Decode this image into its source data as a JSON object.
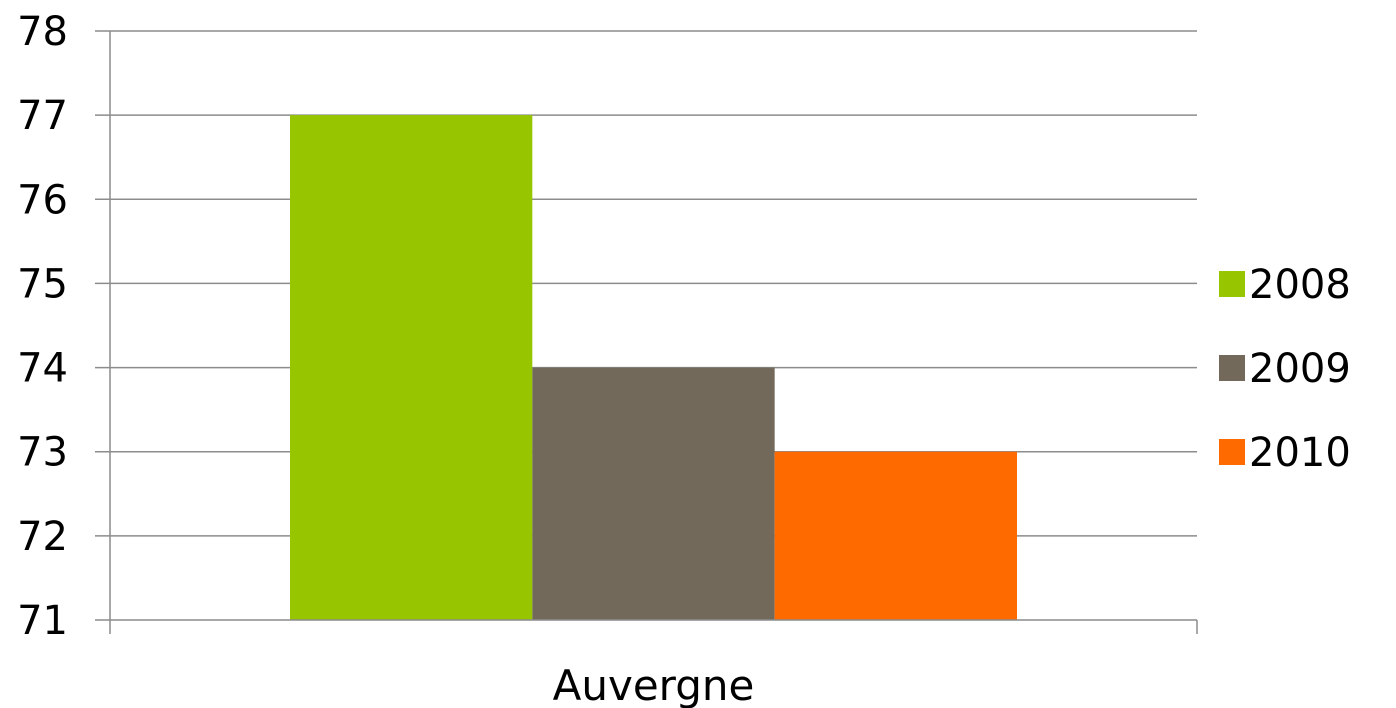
{
  "chart_data": {
    "type": "bar",
    "title": "",
    "xlabel": "",
    "ylabel": "",
    "categories": [
      "Auvergne"
    ],
    "series": [
      {
        "name": "2008",
        "values": [
          77
        ],
        "color": "#97C600"
      },
      {
        "name": "2009",
        "values": [
          74
        ],
        "color": "#73695B"
      },
      {
        "name": "2010",
        "values": [
          73
        ],
        "color": "#FF6A00"
      }
    ],
    "ylim": [
      71,
      78
    ],
    "yticks": [
      "71",
      "72",
      "73",
      "74",
      "75",
      "76",
      "77",
      "78"
    ],
    "grid": true,
    "legend": "right"
  }
}
